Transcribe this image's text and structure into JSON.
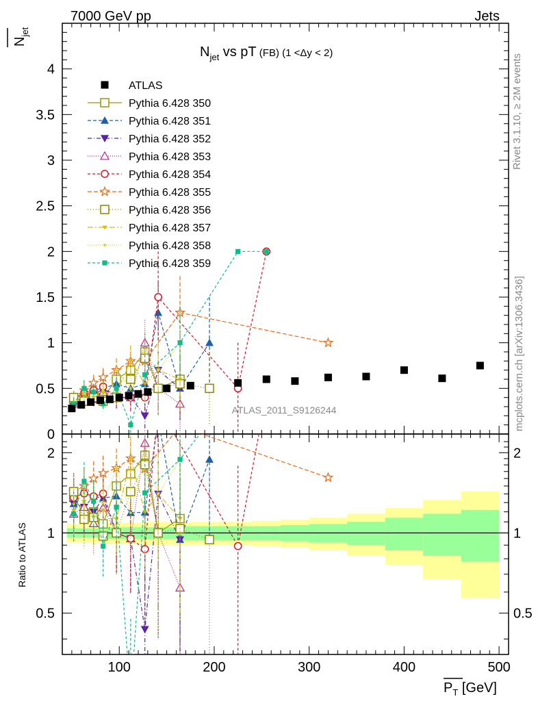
{
  "header": {
    "left": "7000 GeV pp",
    "right": "Jets",
    "side_rivet": "Rivet 3.1.10, ≥ 2M events",
    "side_mcplots": "mcplots.cern.ch [arXiv:1306.3436]",
    "watermark": "ATLAS_2011_S9126244"
  },
  "title": {
    "main": "N",
    "sub": "jet",
    "rest": " vs pT",
    "small": " (FB) (1 <Δy < 2)"
  },
  "ylabel": {
    "main": "N",
    "sub": "jet"
  },
  "xlabel": {
    "main": "P",
    "sub": "T",
    "unit": " [GeV]"
  },
  "ratio_ylabel": "Ratio to ATLAS",
  "ticks": {
    "main_y": [
      "0",
      "0.5",
      "1",
      "1.5",
      "2",
      "2.5",
      "3",
      "3.5",
      "4"
    ],
    "x": [
      "100",
      "200",
      "300",
      "400",
      "500"
    ],
    "ratio_y": [
      "0.5",
      "1",
      "2"
    ]
  },
  "chart_data": {
    "type": "scatter",
    "x_range": [
      40,
      510
    ],
    "main_ylim": [
      0,
      4.5
    ],
    "ratio_ylim": [
      0.35,
      2.35
    ],
    "ratio_log": true,
    "data_label": "ATLAS",
    "data": {
      "x": [
        50,
        60,
        70,
        80,
        90,
        100,
        110,
        120,
        130,
        150,
        175,
        225,
        255,
        285,
        320,
        360,
        400,
        440,
        480
      ],
      "xlo": [
        45,
        55,
        65,
        75,
        85,
        95,
        105,
        115,
        125,
        135,
        165,
        185,
        240,
        270,
        300,
        340,
        380,
        420,
        460
      ],
      "xhi": [
        55,
        65,
        75,
        85,
        95,
        105,
        115,
        125,
        135,
        165,
        185,
        240,
        270,
        300,
        340,
        380,
        420,
        460,
        500
      ],
      "y": [
        0.28,
        0.32,
        0.35,
        0.37,
        0.38,
        0.4,
        0.42,
        0.44,
        0.46,
        0.5,
        0.53,
        0.56,
        0.6,
        0.58,
        0.62,
        0.63,
        0.7,
        0.61,
        0.75
      ],
      "band_stat": [
        0.04,
        0.04,
        0.04,
        0.04,
        0.05,
        0.05,
        0.05,
        0.05,
        0.05,
        0.05,
        0.06,
        0.06,
        0.06,
        0.07,
        0.08,
        0.1,
        0.14,
        0.18,
        0.22
      ],
      "band_tot": [
        0.08,
        0.08,
        0.08,
        0.08,
        0.09,
        0.09,
        0.09,
        0.09,
        0.1,
        0.1,
        0.1,
        0.1,
        0.11,
        0.12,
        0.14,
        0.18,
        0.24,
        0.33,
        0.43
      ]
    },
    "series": [
      {
        "name": "Pythia 6.428 350",
        "color": "#999900",
        "marker": "open-square",
        "dash": "",
        "points": [
          [
            52,
            0.38,
            0.07
          ],
          [
            63,
            0.38,
            0.08
          ],
          [
            73,
            0.42,
            0.09
          ],
          [
            83,
            0.4,
            0.08
          ],
          [
            97,
            0.6,
            0.12
          ],
          [
            112,
            0.7,
            0.14
          ],
          [
            127,
            0.9,
            0.2
          ],
          [
            141,
            0.5,
            0.3
          ],
          [
            164,
            0.6,
            0.4
          ]
        ]
      },
      {
        "name": "Pythia 6.428 351",
        "color": "#1f5faa",
        "marker": "triangle-up",
        "dash": "5,3",
        "points": [
          [
            52,
            0.36,
            0.07
          ],
          [
            63,
            0.4,
            0.08
          ],
          [
            73,
            0.48,
            0.09
          ],
          [
            83,
            0.5,
            0.09
          ],
          [
            97,
            0.55,
            0.12
          ],
          [
            112,
            0.5,
            0.15
          ],
          [
            127,
            0.55,
            0.2
          ],
          [
            141,
            1.33,
            0.33
          ],
          [
            164,
            0.5,
            0.35
          ],
          [
            195,
            1.0,
            0.5
          ]
        ]
      },
      {
        "name": "Pythia 6.428 352",
        "color": "#5522aa",
        "marker": "triangle-down",
        "dash": "6,3,1,3",
        "points": [
          [
            52,
            0.36,
            0.07
          ],
          [
            63,
            0.4,
            0.08
          ],
          [
            73,
            0.42,
            0.09
          ],
          [
            83,
            0.5,
            0.09
          ],
          [
            97,
            0.4,
            0.12
          ],
          [
            112,
            0.4,
            0.15
          ],
          [
            127,
            0.2,
            0.2
          ],
          [
            141,
            0.7,
            0.3
          ],
          [
            164,
            0.5,
            0.35
          ]
        ]
      },
      {
        "name": "Pythia 6.428 353",
        "color": "#bb2288",
        "marker": "open-triangle-up",
        "dash": "1,2",
        "points": [
          [
            52,
            0.33,
            0.07
          ],
          [
            63,
            0.4,
            0.08
          ],
          [
            73,
            0.38,
            0.09
          ],
          [
            83,
            0.46,
            0.09
          ],
          [
            97,
            0.4,
            0.12
          ],
          [
            112,
            0.4,
            0.15
          ],
          [
            127,
            1.0,
            0.25
          ],
          [
            141,
            0.5,
            0.3
          ],
          [
            164,
            0.33,
            0.3
          ]
        ]
      },
      {
        "name": "Pythia 6.428 354",
        "color": "#dd1122",
        "marker": "open-circle",
        "dash": "4,3",
        "points": [
          [
            52,
            0.38,
            0.07
          ],
          [
            63,
            0.45,
            0.08
          ],
          [
            73,
            0.48,
            0.09
          ],
          [
            83,
            0.52,
            0.09
          ],
          [
            97,
            0.4,
            0.12
          ],
          [
            112,
            0.4,
            0.15
          ],
          [
            127,
            0.4,
            0.2
          ],
          [
            141,
            1.5,
            0.5
          ],
          [
            225,
            0.5,
            0.5
          ],
          [
            255,
            2.0,
            0.0
          ]
        ]
      },
      {
        "name": "Pythia 6.428 355",
        "color": "#ee6611",
        "marker": "open-star",
        "dash": "6,3",
        "points": [
          [
            52,
            0.4,
            0.07
          ],
          [
            63,
            0.48,
            0.08
          ],
          [
            73,
            0.56,
            0.09
          ],
          [
            83,
            0.62,
            0.1
          ],
          [
            97,
            0.7,
            0.13
          ],
          [
            112,
            0.8,
            0.17
          ],
          [
            127,
            0.8,
            0.22
          ],
          [
            164,
            1.33,
            0.4
          ],
          [
            320,
            1.0,
            0.0
          ]
        ]
      },
      {
        "name": "Pythia 6.428 356",
        "color": "#888800",
        "marker": "open-square",
        "dash": "1,3",
        "points": [
          [
            52,
            0.4,
            0.07
          ],
          [
            63,
            0.36,
            0.08
          ],
          [
            73,
            0.4,
            0.09
          ],
          [
            83,
            0.36,
            0.08
          ],
          [
            97,
            0.4,
            0.12
          ],
          [
            112,
            0.6,
            0.15
          ],
          [
            127,
            0.83,
            0.2
          ],
          [
            141,
            0.5,
            0.3
          ],
          [
            164,
            0.55,
            0.35
          ],
          [
            195,
            0.5,
            0.4
          ]
        ]
      },
      {
        "name": "Pythia 6.428 357",
        "color": "#ddbb11",
        "marker": "tri-down",
        "dash": "8,3,2,3",
        "points": [
          [
            52,
            0.34,
            0.07
          ],
          [
            63,
            0.42,
            0.08
          ],
          [
            73,
            0.4,
            0.09
          ],
          [
            83,
            0.45,
            0.09
          ],
          [
            97,
            0.45,
            0.12
          ],
          [
            112,
            0.8,
            0.17
          ],
          [
            127,
            0.55,
            0.22
          ],
          [
            141,
            0.7,
            0.3
          ],
          [
            164,
            0.6,
            0.35
          ]
        ]
      },
      {
        "name": "Pythia 6.428 358",
        "color": "#ccdd22",
        "marker": "dot",
        "dash": "1,2",
        "points": [
          [
            52,
            0.36,
            0.07
          ],
          [
            63,
            0.45,
            0.08
          ],
          [
            73,
            0.46,
            0.09
          ],
          [
            83,
            0.48,
            0.09
          ],
          [
            97,
            0.7,
            0.13
          ],
          [
            112,
            0.5,
            0.16
          ],
          [
            127,
            0.9,
            0.23
          ],
          [
            141,
            0.7,
            0.3
          ],
          [
            164,
            1.0,
            0.4
          ]
        ]
      },
      {
        "name": "Pythia 6.428 359",
        "color": "#11bb88",
        "marker": "filled-square",
        "dash": "4,3",
        "points": [
          [
            52,
            0.33,
            0.07
          ],
          [
            63,
            0.5,
            0.09
          ],
          [
            73,
            0.46,
            0.09
          ],
          [
            83,
            0.33,
            0.08
          ],
          [
            97,
            0.5,
            0.12
          ],
          [
            112,
            0.1,
            0.1
          ],
          [
            127,
            0.65,
            0.22
          ],
          [
            164,
            1.0,
            0.4
          ],
          [
            225,
            2.0,
            0.0
          ],
          [
            255,
            2.0,
            0.0
          ]
        ]
      }
    ]
  }
}
